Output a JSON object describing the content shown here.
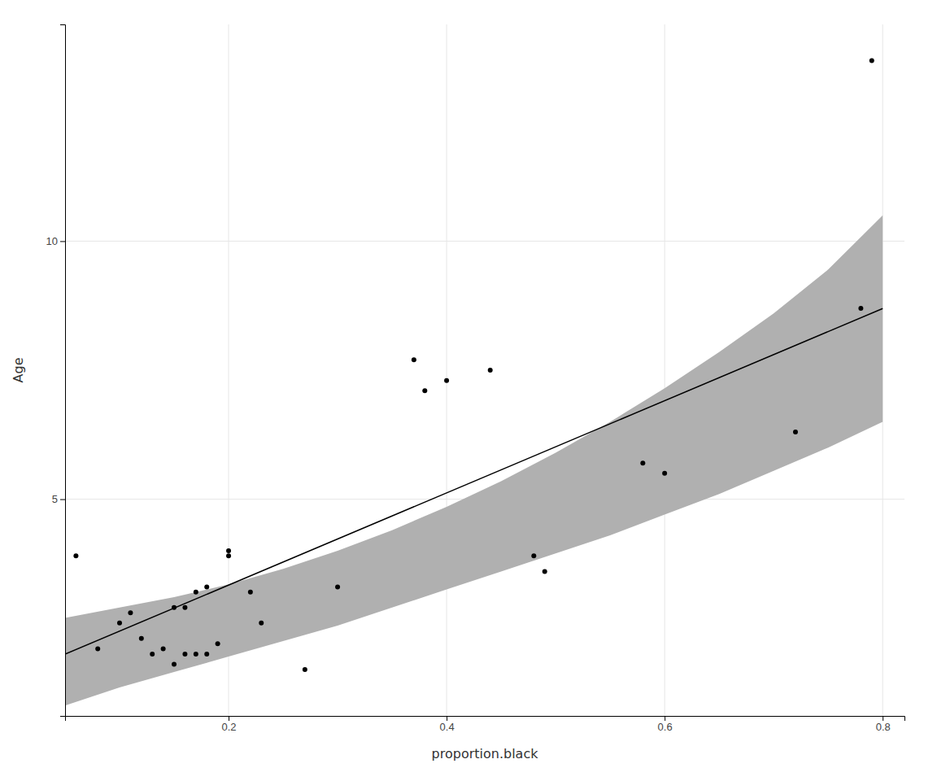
{
  "chart_data": {
    "type": "scatter",
    "xlabel": "proportion.black",
    "ylabel": "Age",
    "xlim": [
      0.05,
      0.82
    ],
    "ylim": [
      0.8,
      14.2
    ],
    "xticks": [
      0.2,
      0.4,
      0.6,
      0.8
    ],
    "yticks": [
      5,
      10
    ],
    "grid": true,
    "series": [
      {
        "type": "area",
        "color": "#b0b0b0",
        "x": [
          0.05,
          0.1,
          0.15,
          0.2,
          0.25,
          0.3,
          0.35,
          0.4,
          0.45,
          0.5,
          0.55,
          0.6,
          0.65,
          0.7,
          0.75,
          0.8
        ],
        "lower": [
          1.0,
          1.35,
          1.65,
          1.95,
          2.25,
          2.55,
          2.9,
          3.25,
          3.6,
          3.95,
          4.3,
          4.7,
          5.1,
          5.55,
          6.0,
          6.5
        ],
        "upper": [
          2.7,
          2.9,
          3.1,
          3.35,
          3.65,
          4.0,
          4.4,
          4.85,
          5.35,
          5.9,
          6.5,
          7.15,
          7.85,
          8.6,
          9.45,
          10.5
        ]
      },
      {
        "type": "line",
        "color": "#000000",
        "x": [
          0.05,
          0.8
        ],
        "values": [
          1.9965,
          8.694
        ]
      },
      {
        "type": "scatter",
        "color": "#000000",
        "x": [
          0.06,
          0.08,
          0.1,
          0.11,
          0.12,
          0.13,
          0.14,
          0.15,
          0.15,
          0.16,
          0.16,
          0.17,
          0.17,
          0.18,
          0.18,
          0.19,
          0.2,
          0.2,
          0.22,
          0.23,
          0.27,
          0.3,
          0.37,
          0.38,
          0.4,
          0.44,
          0.48,
          0.49,
          0.58,
          0.6,
          0.72,
          0.78,
          0.79
        ],
        "values": [
          3.9,
          2.1,
          2.6,
          2.8,
          2.3,
          2.0,
          2.1,
          1.8,
          2.9,
          2.0,
          2.9,
          3.2,
          2.0,
          3.3,
          2.0,
          2.2,
          3.9,
          4.0,
          3.2,
          2.6,
          1.7,
          3.3,
          7.7,
          7.1,
          7.3,
          7.5,
          3.9,
          3.6,
          5.7,
          5.5,
          6.3,
          8.7,
          13.5
        ]
      }
    ]
  }
}
